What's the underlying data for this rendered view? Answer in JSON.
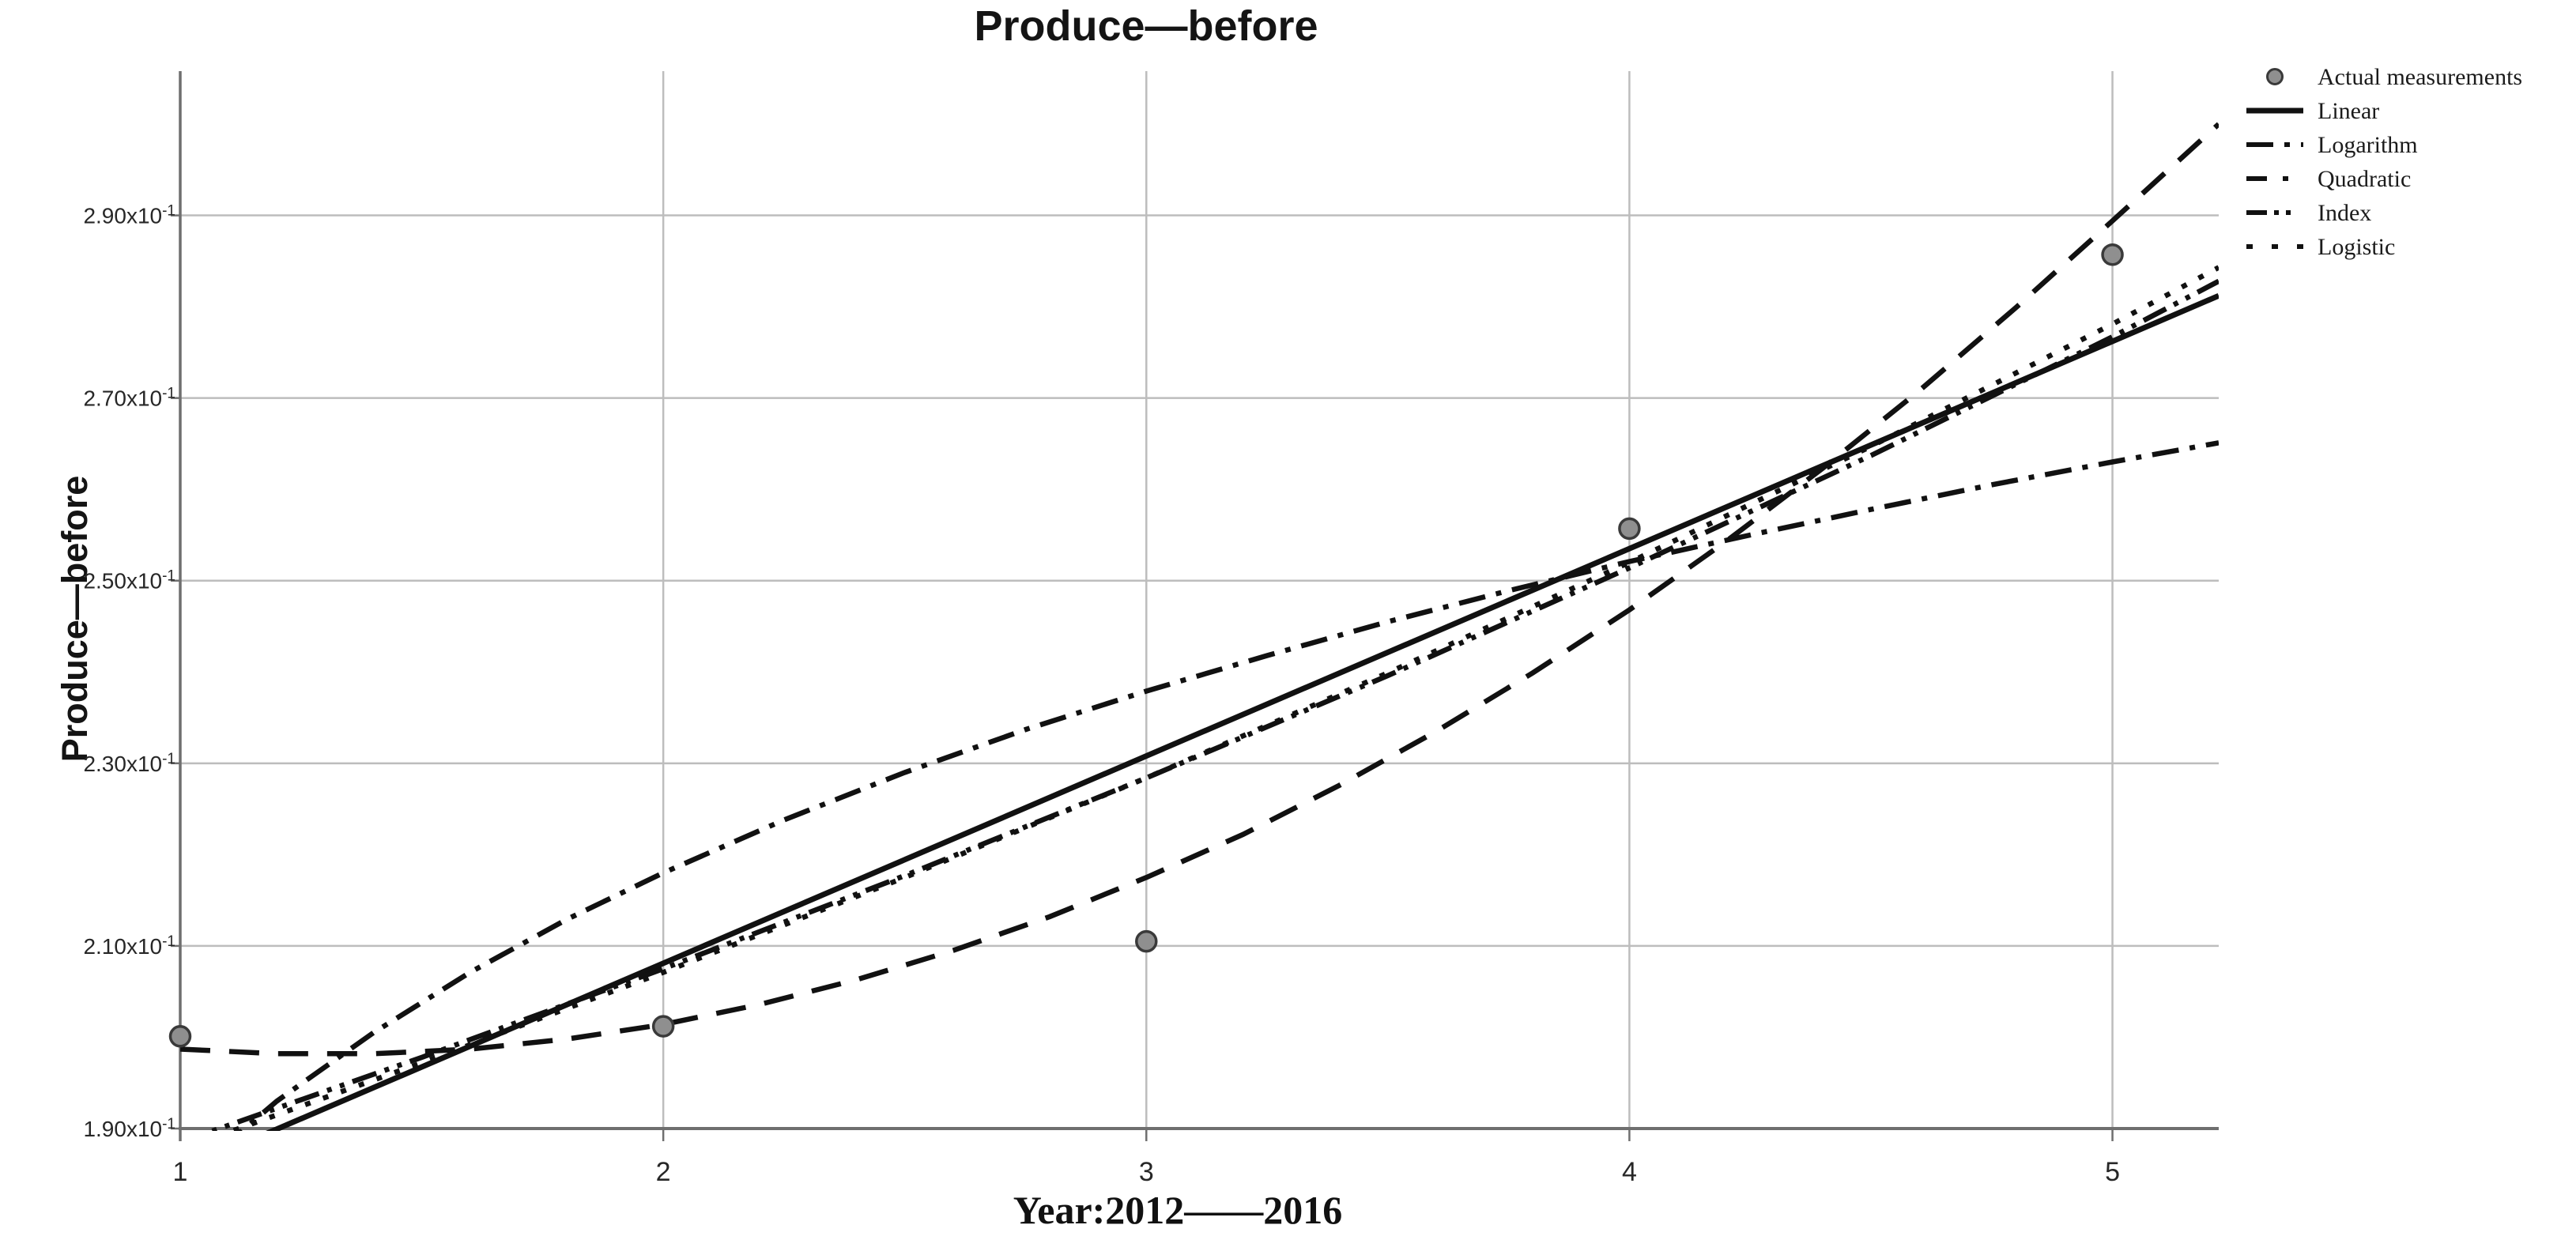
{
  "chart_data": {
    "type": "line",
    "title": "Produce—before",
    "ylabel": "Produce—before",
    "xlabel": "Year:2012——2016",
    "xlim": [
      1,
      5.22
    ],
    "ylim": [
      1.9,
      3.058
    ],
    "grid": true,
    "legend_position": "top-right",
    "x_ticks": [
      {
        "v": 1,
        "label": "1"
      },
      {
        "v": 2,
        "label": "2"
      },
      {
        "v": 3,
        "label": "3"
      },
      {
        "v": 4,
        "label": "4"
      },
      {
        "v": 5,
        "label": "5"
      }
    ],
    "y_ticks": [
      {
        "v": 1.9,
        "label": "1.90x10",
        "sup": "-1"
      },
      {
        "v": 2.1,
        "label": "2.10x10",
        "sup": "-1"
      },
      {
        "v": 2.3,
        "label": "2.30x10",
        "sup": "-1"
      },
      {
        "v": 2.5,
        "label": "2.50x10",
        "sup": "-1"
      },
      {
        "v": 2.7,
        "label": "2.70x10",
        "sup": "-1"
      },
      {
        "v": 2.9,
        "label": "2.90x10",
        "sup": "-1"
      }
    ],
    "points": {
      "name": "Actual measurements",
      "x": [
        1,
        2,
        3,
        4,
        5
      ],
      "y": [
        2.001,
        2.012,
        2.105,
        2.557,
        2.857
      ]
    },
    "series": [
      {
        "name": "Linear",
        "style": "solid",
        "data": [
          [
            1,
            1.854
          ],
          [
            5.22,
            2.812
          ]
        ]
      },
      {
        "name": "Logarithm",
        "style": "dash-dot",
        "data": [
          [
            1,
            1.84
          ],
          [
            1.2,
            1.93
          ],
          [
            1.4,
            2.005
          ],
          [
            1.6,
            2.071
          ],
          [
            1.8,
            2.129
          ],
          [
            2,
            2.18
          ],
          [
            2.25,
            2.238
          ],
          [
            2.5,
            2.29
          ],
          [
            2.75,
            2.337
          ],
          [
            3,
            2.379
          ],
          [
            3.25,
            2.418
          ],
          [
            3.5,
            2.455
          ],
          [
            3.75,
            2.489
          ],
          [
            4,
            2.521
          ],
          [
            4.25,
            2.55
          ],
          [
            4.5,
            2.578
          ],
          [
            4.75,
            2.605
          ],
          [
            5,
            2.63
          ],
          [
            5.22,
            2.651
          ]
        ]
      },
      {
        "name": "Quadratic",
        "style": "dash",
        "data": [
          [
            1,
            1.987
          ],
          [
            1.2,
            1.982
          ],
          [
            1.4,
            1.982
          ],
          [
            1.6,
            1.987
          ],
          [
            1.8,
            1.998
          ],
          [
            2,
            2.014
          ],
          [
            2.2,
            2.036
          ],
          [
            2.4,
            2.063
          ],
          [
            2.6,
            2.095
          ],
          [
            2.8,
            2.132
          ],
          [
            3,
            2.175
          ],
          [
            3.2,
            2.222
          ],
          [
            3.4,
            2.276
          ],
          [
            3.6,
            2.335
          ],
          [
            3.8,
            2.399
          ],
          [
            4,
            2.468
          ],
          [
            4.2,
            2.543
          ],
          [
            4.4,
            2.623
          ],
          [
            4.6,
            2.708
          ],
          [
            4.8,
            2.799
          ],
          [
            5,
            2.894
          ],
          [
            5.22,
            3.0
          ]
        ]
      },
      {
        "name": "Index",
        "style": "dash-dot-dot",
        "data": [
          [
            1,
            1.885
          ],
          [
            1.5,
            1.978
          ],
          [
            2,
            2.075
          ],
          [
            2.5,
            2.177
          ],
          [
            3,
            2.284
          ],
          [
            3.5,
            2.396
          ],
          [
            4,
            2.514
          ],
          [
            4.5,
            2.637
          ],
          [
            5,
            2.767
          ],
          [
            5.22,
            2.828
          ]
        ]
      },
      {
        "name": "Logistic",
        "style": "dot",
        "data": [
          [
            1,
            1.877
          ],
          [
            1.5,
            1.972
          ],
          [
            2,
            2.071
          ],
          [
            2.5,
            2.175
          ],
          [
            3,
            2.284
          ],
          [
            3.5,
            2.399
          ],
          [
            4,
            2.52
          ],
          [
            4.5,
            2.647
          ],
          [
            5,
            2.781
          ],
          [
            5.22,
            2.843
          ]
        ]
      }
    ],
    "legend": [
      {
        "label": "Actual measurements",
        "style": "marker"
      },
      {
        "label": "Linear",
        "style": "solid"
      },
      {
        "label": "Logarithm",
        "style": "dash-dot"
      },
      {
        "label": "Quadratic",
        "style": "dash"
      },
      {
        "label": "Index",
        "style": "dash-dot-dot"
      },
      {
        "label": "Logistic",
        "style": "dot"
      }
    ],
    "colors": {
      "line": "#111111",
      "grid": "#bdbdbd",
      "axis": "#6f6f6f",
      "point_fill": "#8f8f8f",
      "point_stroke": "#3a3a3a",
      "text": "#272727",
      "background": "#ffffff"
    }
  }
}
